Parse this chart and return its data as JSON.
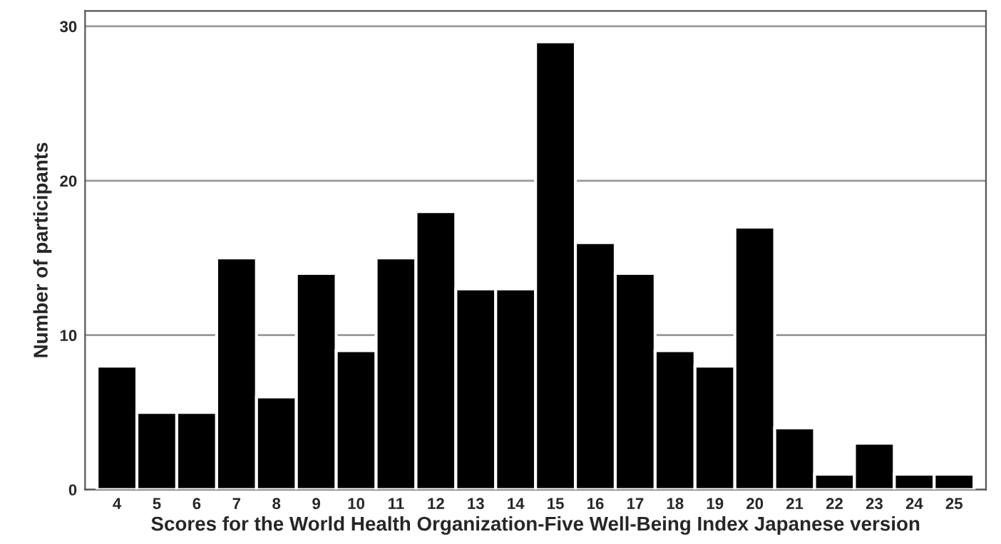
{
  "chart_data": {
    "type": "bar",
    "xlabel": "Scores for the World Health Organization-Five Well-Being Index Japanese version",
    "ylabel": "Number of participants",
    "categories": [
      "4",
      "5",
      "6",
      "7",
      "8",
      "9",
      "10",
      "11",
      "12",
      "13",
      "14",
      "15",
      "16",
      "17",
      "18",
      "19",
      "20",
      "21",
      "22",
      "23",
      "24",
      "25"
    ],
    "values": [
      8,
      5,
      5,
      15,
      6,
      14,
      9,
      15,
      18,
      13,
      13,
      29,
      16,
      14,
      9,
      8,
      17,
      4,
      1,
      3,
      1,
      1
    ],
    "color": "#000000",
    "ylim": [
      0,
      31
    ],
    "yticks": [
      0,
      10,
      20,
      30
    ],
    "grid": "y"
  }
}
